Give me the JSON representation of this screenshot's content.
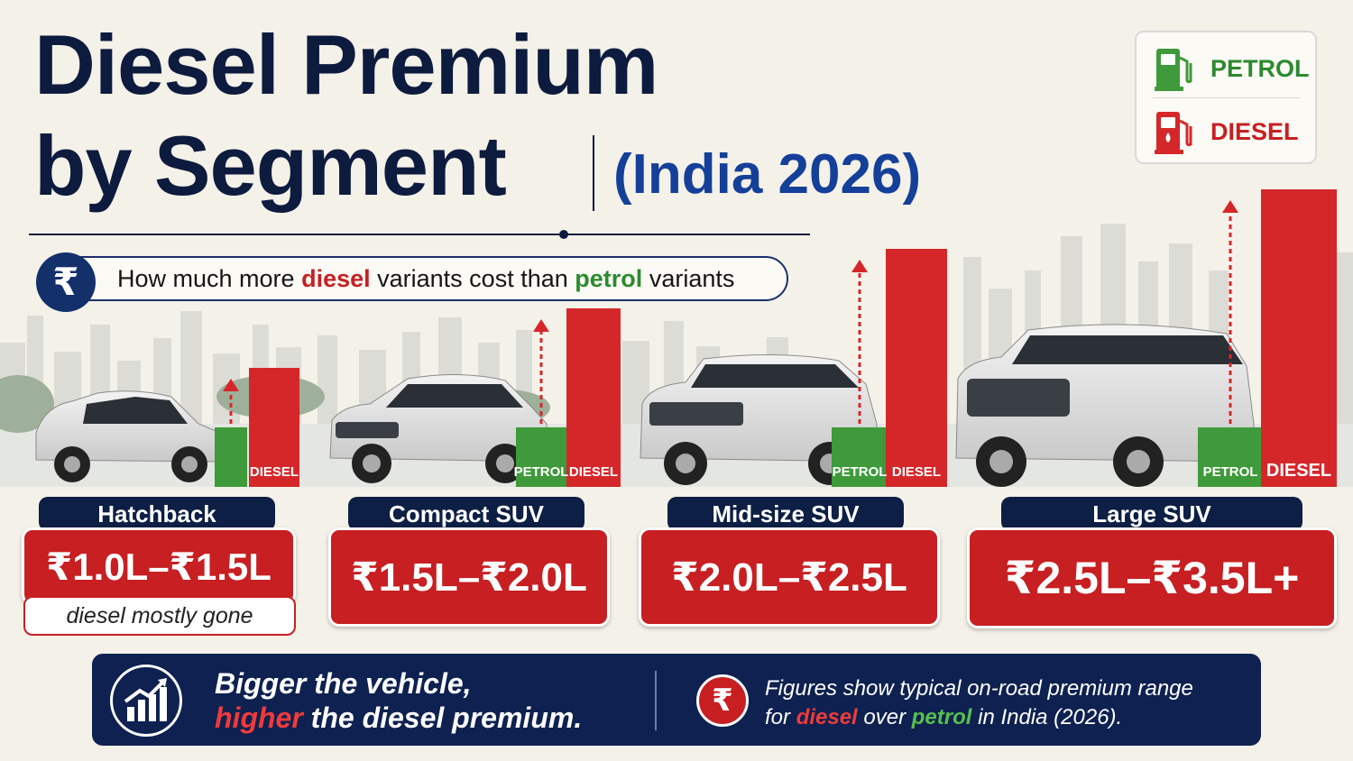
{
  "title": {
    "line1": "Diesel Premium",
    "line2": "by Segment",
    "year": "(India 2026)"
  },
  "subtitle": {
    "rupee_symbol": "₹",
    "part1": "How much more",
    "diesel_word": "diesel",
    "part2": "variants cost than",
    "petrol_word": "petrol",
    "part3": "variants"
  },
  "legend": {
    "petrol": "PETROL",
    "diesel": "DIESEL",
    "petrol_icon": "fuel-pump-icon",
    "diesel_icon": "fuel-drop-pump-icon"
  },
  "colors": {
    "petrol": "#3e9a3a",
    "diesel": "#d5272a",
    "navy": "#0d1f44",
    "accent_blue": "#15409a"
  },
  "chart_data": {
    "type": "bar",
    "categories": [
      "Hatchback",
      "Compact SUV",
      "Mid-size SUV",
      "Large SUV"
    ],
    "series": [
      {
        "name": "PETROL",
        "values": [
          1.0,
          1.0,
          1.0,
          1.0
        ]
      },
      {
        "name": "DIESEL",
        "values": [
          2.0,
          3.0,
          4.0,
          5.0
        ]
      }
    ],
    "bar_labels": [
      {
        "petrol": "",
        "diesel": "DIESEL"
      },
      {
        "petrol": "PETROL",
        "diesel": "DIESEL"
      },
      {
        "petrol": "PETROL",
        "diesel": "DIESEL"
      },
      {
        "petrol": "PETROL",
        "diesel": "DIESEL"
      }
    ],
    "premium_ranges": [
      "₹1.0L–₹1.5L",
      "₹1.5L–₹2.0L",
      "₹2.0L–₹2.5L",
      "₹2.5L–₹3.5L+"
    ],
    "notes": [
      "diesel mostly gone",
      "",
      "",
      ""
    ],
    "ylim": [
      0,
      5
    ],
    "grid": false
  },
  "footer": {
    "tagline_line1": "Bigger the vehicle,",
    "tagline_higher": "higher",
    "tagline_rest": "the diesel premium.",
    "rupee_symbol": "₹",
    "note_line1": "Figures show typical on-road premium range",
    "note_for": "for",
    "note_diesel": "diesel",
    "note_over": "over",
    "note_petrol": "petrol",
    "note_end": "in India (2026).",
    "icon": "growth-chart-icon"
  }
}
